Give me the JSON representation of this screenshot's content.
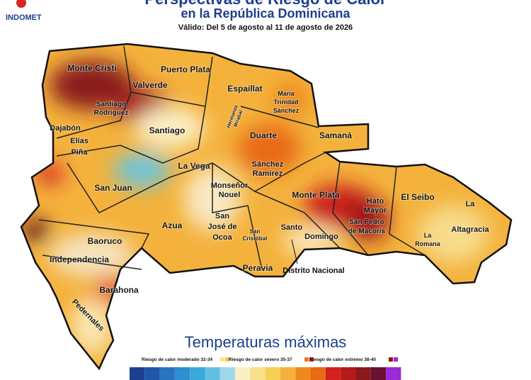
{
  "header": {
    "logo": "INDOMET",
    "title": "Perspectivas de Riesgo de Calor",
    "subtitle": "en la República Dominicana",
    "validity": "Válido: Del 5 de agosto al 11 de agosto de 2026"
  },
  "map": {
    "provinces": [
      [
        "Monte Cristi"
      ],
      [
        "Puerto Plata"
      ],
      [
        "Valverde"
      ],
      [
        "Espaillat"
      ],
      [
        "María",
        "Trinidad",
        "Sánchez"
      ],
      [
        "Santiago",
        "Rodríguez"
      ],
      [
        "Hermanas",
        "Mirabal"
      ],
      [
        "Dajabón"
      ],
      [
        "Santiago"
      ],
      [
        "Duarte"
      ],
      [
        "Samaná"
      ],
      [
        "Elías",
        "Piña"
      ],
      [
        "La Vega"
      ],
      [
        "Sánchez",
        "Ramírez"
      ],
      [
        "Monseñor",
        "Nouel"
      ],
      [
        "San Juan"
      ],
      [
        "Monte Plata"
      ],
      [
        "Hato",
        "Mayor"
      ],
      [
        "El Seibo"
      ],
      [
        "La",
        "Altagracia"
      ],
      [
        "San",
        "José de",
        "Ocoa"
      ],
      [
        "Azua"
      ],
      [
        "Baoruco"
      ],
      [
        "Santo"
      ],
      [
        "Domingo"
      ],
      [
        "San Pedro",
        "de Macorís"
      ],
      [
        "San",
        "Cristóbal"
      ],
      [
        "La",
        "Romana"
      ],
      [
        "Independencia"
      ],
      [
        "Peravia"
      ],
      [
        "Barahona"
      ],
      [
        "Pedernales"
      ]
    ],
    "distrito_nacional": "Distrito Nacional"
  },
  "legend": {
    "title": "Temperaturas máximas",
    "items": [
      "Riesgo de calor moderado 32-34",
      "Riesgo de calor severo 35-37",
      "Riesgo de calor extremo 38-40"
    ]
  }
}
